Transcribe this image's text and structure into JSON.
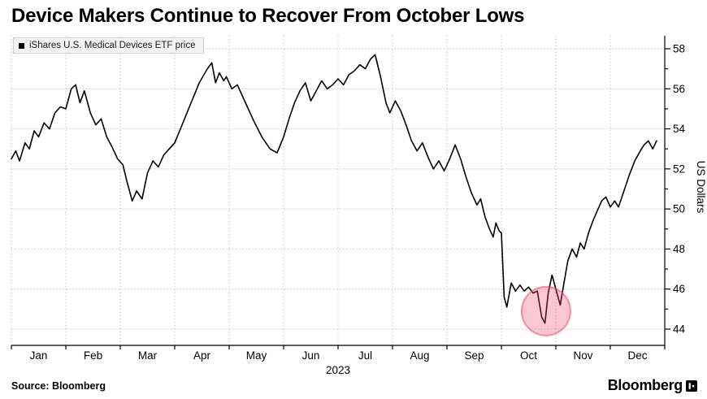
{
  "title": "Device Makers Continue to Recover From October Lows",
  "legend": {
    "label": "iShares U.S. Medical Devices ETF price",
    "marker_color": "#000000"
  },
  "footer": {
    "source": "Source: Bloomberg",
    "brand": "Bloomberg"
  },
  "chart_data": {
    "type": "line",
    "title": "Device Makers Continue to Recover From October Lows",
    "series_name": "iShares U.S. Medical Devices ETF price",
    "x_categories": [
      "Jan",
      "Feb",
      "Mar",
      "Apr",
      "May",
      "Jun",
      "Jul",
      "Aug",
      "Sep",
      "Oct",
      "Nov",
      "Dec"
    ],
    "x_year_label": "2023",
    "ylabel": "US Dollars",
    "ylim": [
      43.2,
      58.6
    ],
    "y_ticks": [
      44,
      46,
      48,
      50,
      52,
      54,
      56,
      58
    ],
    "line_color": "#000000",
    "grid_color": "#c9c9c9",
    "axis_color": "#000000",
    "legend_position": "top-left",
    "grid": true,
    "series": [
      {
        "name": "iShares U.S. Medical Devices ETF price",
        "x_unit": "month_fraction_0_to_12",
        "points": [
          [
            0.0,
            52.5
          ],
          [
            0.08,
            52.9
          ],
          [
            0.15,
            52.4
          ],
          [
            0.25,
            53.3
          ],
          [
            0.33,
            53.0
          ],
          [
            0.42,
            53.9
          ],
          [
            0.5,
            53.6
          ],
          [
            0.6,
            54.3
          ],
          [
            0.7,
            54.0
          ],
          [
            0.8,
            54.8
          ],
          [
            0.9,
            55.1
          ],
          [
            1.0,
            55.0
          ],
          [
            1.1,
            56.0
          ],
          [
            1.18,
            56.2
          ],
          [
            1.26,
            55.3
          ],
          [
            1.34,
            55.9
          ],
          [
            1.45,
            54.8
          ],
          [
            1.55,
            54.2
          ],
          [
            1.65,
            54.5
          ],
          [
            1.75,
            53.6
          ],
          [
            1.85,
            53.1
          ],
          [
            1.95,
            52.5
          ],
          [
            2.05,
            52.2
          ],
          [
            2.12,
            51.4
          ],
          [
            2.22,
            50.4
          ],
          [
            2.3,
            50.9
          ],
          [
            2.4,
            50.5
          ],
          [
            2.5,
            51.8
          ],
          [
            2.6,
            52.4
          ],
          [
            2.7,
            52.1
          ],
          [
            2.8,
            52.7
          ],
          [
            2.9,
            53.0
          ],
          [
            3.0,
            53.3
          ],
          [
            3.15,
            54.3
          ],
          [
            3.3,
            55.3
          ],
          [
            3.45,
            56.3
          ],
          [
            3.6,
            57.0
          ],
          [
            3.68,
            57.3
          ],
          [
            3.75,
            56.3
          ],
          [
            3.82,
            56.8
          ],
          [
            3.9,
            56.4
          ],
          [
            3.95,
            56.6
          ],
          [
            4.05,
            56.0
          ],
          [
            4.15,
            56.2
          ],
          [
            4.3,
            55.3
          ],
          [
            4.45,
            54.4
          ],
          [
            4.6,
            53.6
          ],
          [
            4.75,
            53.0
          ],
          [
            4.88,
            52.8
          ],
          [
            5.0,
            53.6
          ],
          [
            5.1,
            54.5
          ],
          [
            5.2,
            55.3
          ],
          [
            5.3,
            55.9
          ],
          [
            5.4,
            56.3
          ],
          [
            5.5,
            55.4
          ],
          [
            5.6,
            55.9
          ],
          [
            5.7,
            56.4
          ],
          [
            5.8,
            56.0
          ],
          [
            5.9,
            56.2
          ],
          [
            6.0,
            56.5
          ],
          [
            6.1,
            56.2
          ],
          [
            6.2,
            56.7
          ],
          [
            6.3,
            56.9
          ],
          [
            6.4,
            57.2
          ],
          [
            6.5,
            57.0
          ],
          [
            6.6,
            57.5
          ],
          [
            6.68,
            57.7
          ],
          [
            6.78,
            56.6
          ],
          [
            6.88,
            55.3
          ],
          [
            6.95,
            54.8
          ],
          [
            7.05,
            55.4
          ],
          [
            7.15,
            54.9
          ],
          [
            7.25,
            54.2
          ],
          [
            7.35,
            53.4
          ],
          [
            7.45,
            52.9
          ],
          [
            7.55,
            53.3
          ],
          [
            7.65,
            52.6
          ],
          [
            7.75,
            52.0
          ],
          [
            7.85,
            52.4
          ],
          [
            7.95,
            51.9
          ],
          [
            8.05,
            52.5
          ],
          [
            8.15,
            53.2
          ],
          [
            8.25,
            52.5
          ],
          [
            8.35,
            51.6
          ],
          [
            8.45,
            50.8
          ],
          [
            8.55,
            50.2
          ],
          [
            8.62,
            50.5
          ],
          [
            8.7,
            49.6
          ],
          [
            8.78,
            49.0
          ],
          [
            8.85,
            48.6
          ],
          [
            8.9,
            49.3
          ],
          [
            8.96,
            48.9
          ],
          [
            9.0,
            48.8
          ],
          [
            9.05,
            45.6
          ],
          [
            9.1,
            45.1
          ],
          [
            9.18,
            46.3
          ],
          [
            9.26,
            45.9
          ],
          [
            9.34,
            46.2
          ],
          [
            9.42,
            45.9
          ],
          [
            9.5,
            46.1
          ],
          [
            9.58,
            45.8
          ],
          [
            9.66,
            45.9
          ],
          [
            9.74,
            44.6
          ],
          [
            9.8,
            44.3
          ],
          [
            9.86,
            45.8
          ],
          [
            9.93,
            46.7
          ],
          [
            10.0,
            46.0
          ],
          [
            10.08,
            45.2
          ],
          [
            10.15,
            46.3
          ],
          [
            10.22,
            47.4
          ],
          [
            10.3,
            48.0
          ],
          [
            10.38,
            47.6
          ],
          [
            10.45,
            48.3
          ],
          [
            10.52,
            48.0
          ],
          [
            10.6,
            48.8
          ],
          [
            10.68,
            49.4
          ],
          [
            10.76,
            49.9
          ],
          [
            10.84,
            50.4
          ],
          [
            10.92,
            50.6
          ],
          [
            11.0,
            50.1
          ],
          [
            11.08,
            50.4
          ],
          [
            11.15,
            50.1
          ],
          [
            11.25,
            50.9
          ],
          [
            11.35,
            51.7
          ],
          [
            11.45,
            52.4
          ],
          [
            11.55,
            52.9
          ],
          [
            11.62,
            53.2
          ],
          [
            11.7,
            53.4
          ],
          [
            11.78,
            53.0
          ],
          [
            11.85,
            53.4
          ]
        ]
      }
    ],
    "annotation_circle": {
      "x_month": 9.82,
      "value": 44.9,
      "radius_px": 30,
      "fill": "rgba(240,70,105,0.30)",
      "stroke": "rgba(240,70,105,0.55)"
    }
  }
}
